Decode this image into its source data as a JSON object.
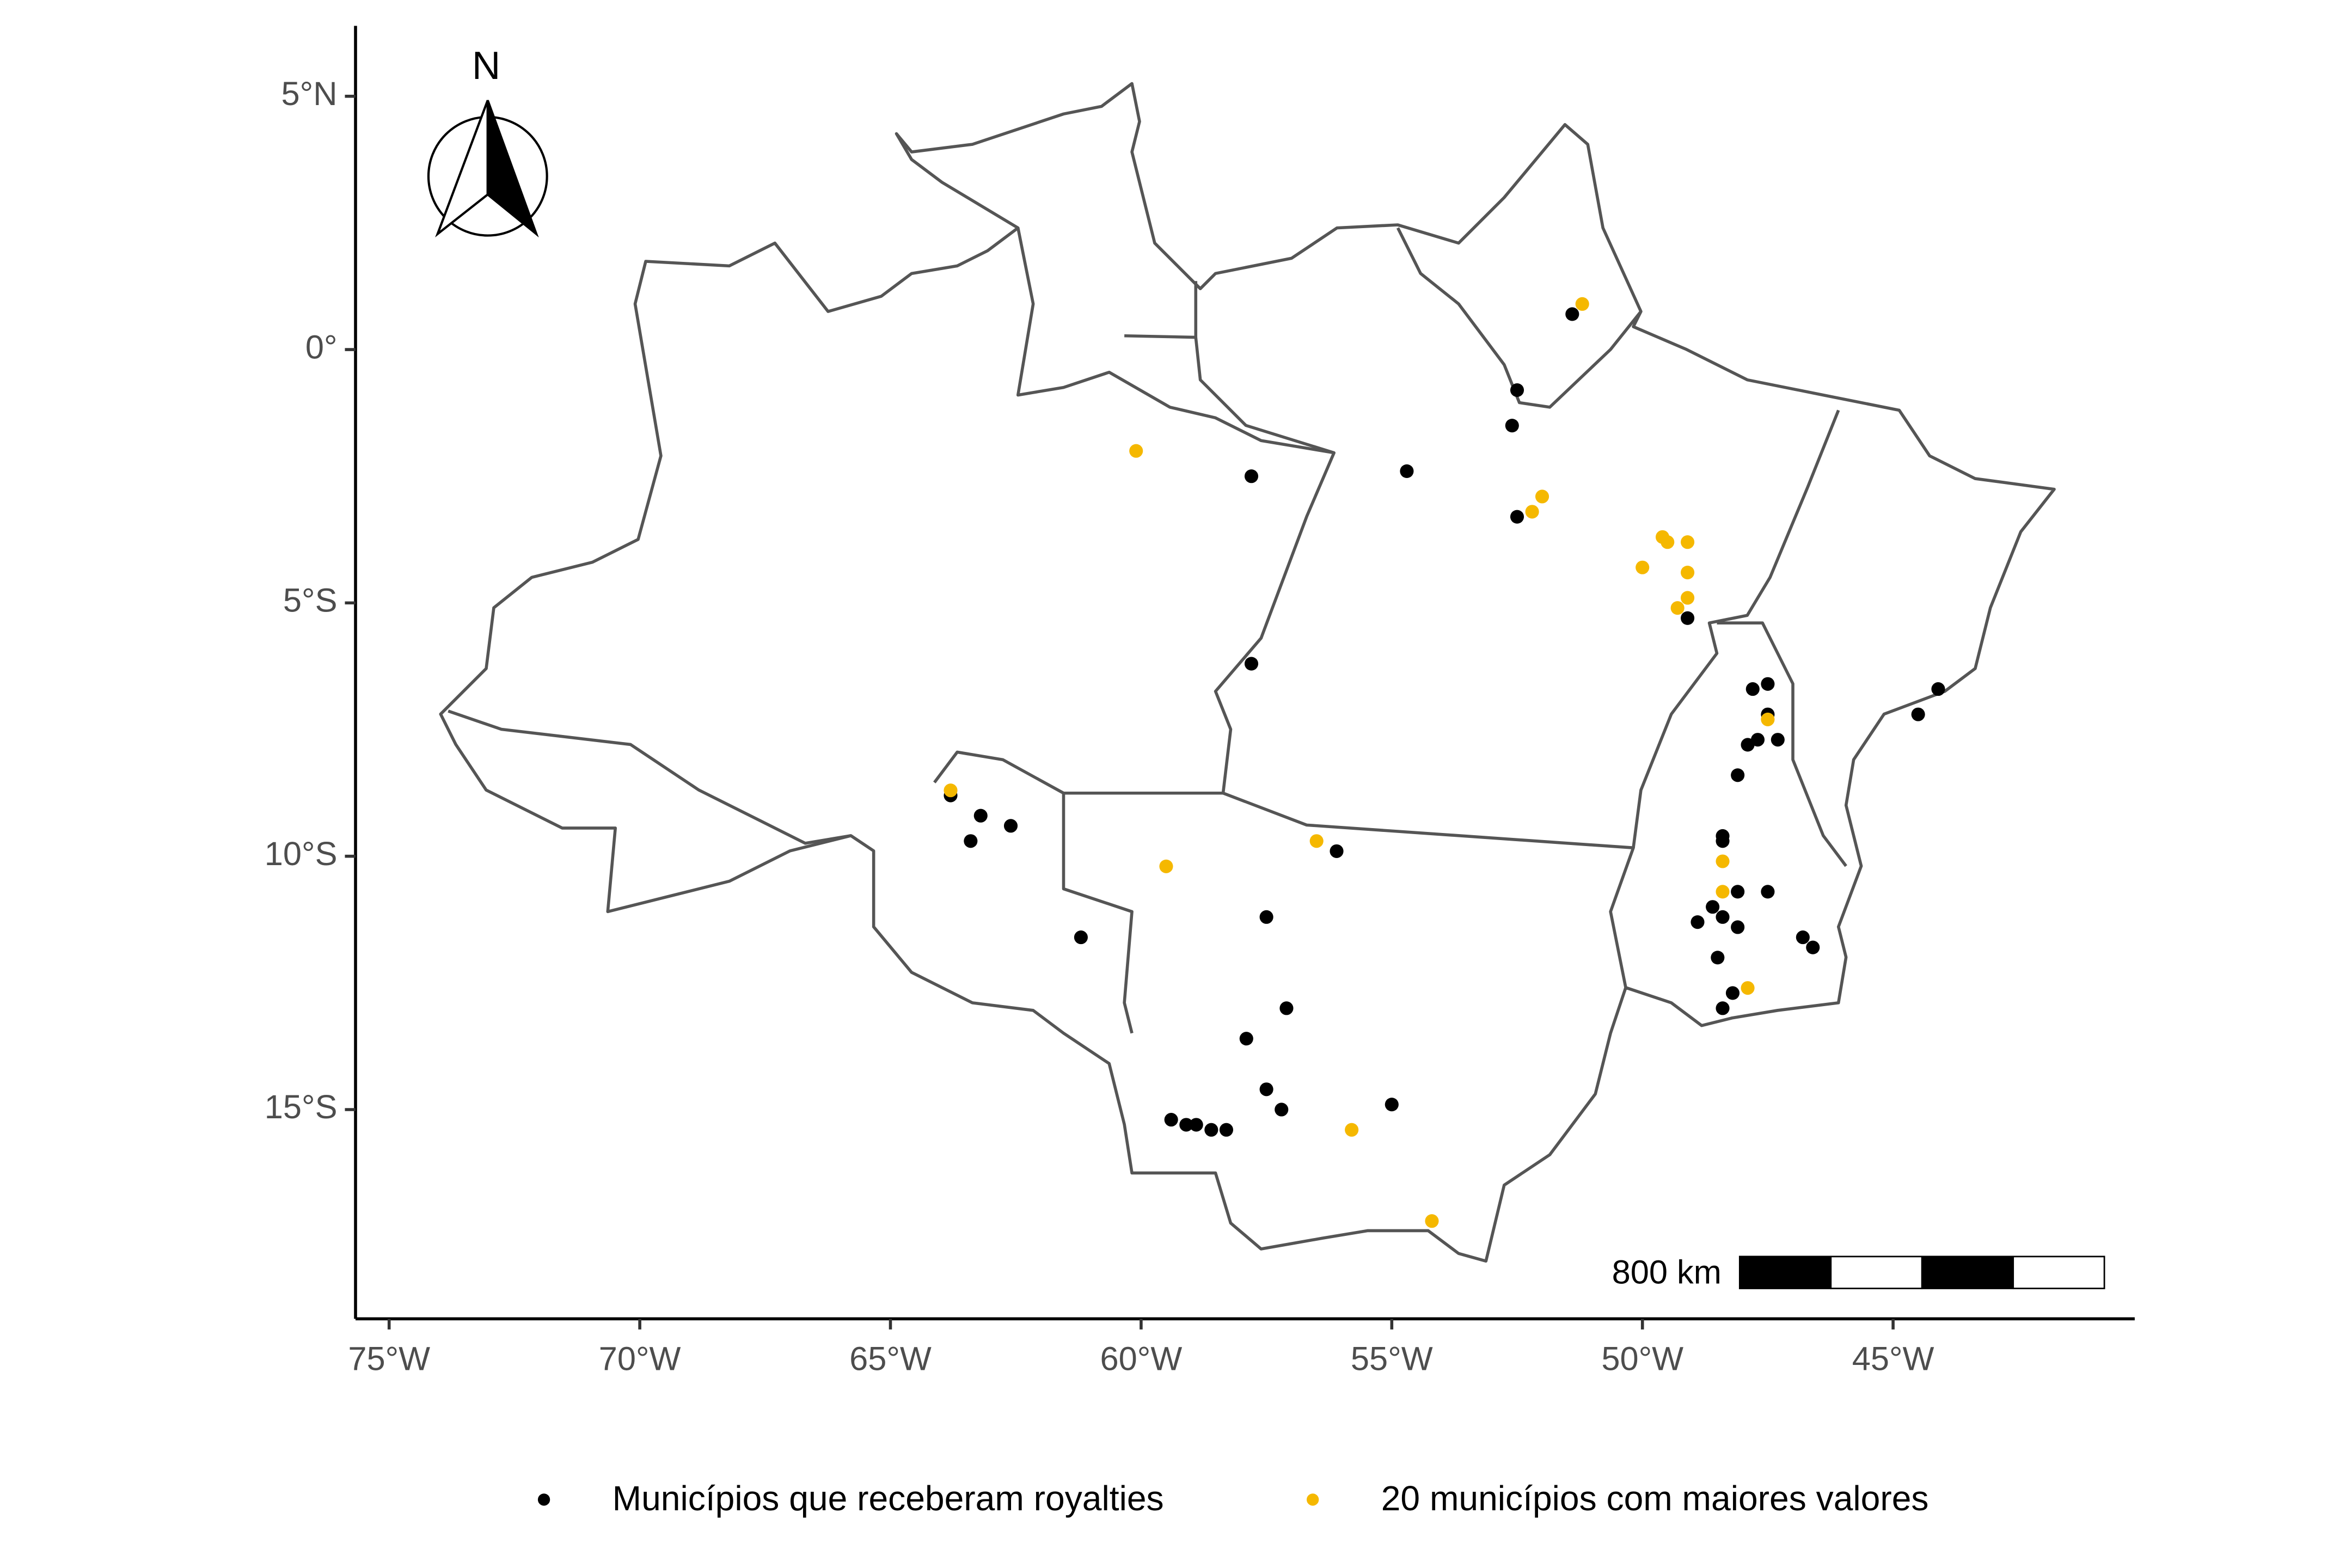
{
  "chart_data": {
    "type": "scatter",
    "xlim": [
      -75.67,
      -40.18
    ],
    "ylim": [
      -19.13,
      6.39
    ],
    "xticks": [
      {
        "value": -75,
        "label": "75°W"
      },
      {
        "value": -70,
        "label": "70°W"
      },
      {
        "value": -65,
        "label": "65°W"
      },
      {
        "value": -60,
        "label": "60°W"
      },
      {
        "value": -55,
        "label": "55°W"
      },
      {
        "value": -50,
        "label": "50°W"
      },
      {
        "value": -45,
        "label": "45°W"
      }
    ],
    "yticks": [
      {
        "value": 5,
        "label": "5°N"
      },
      {
        "value": 0,
        "label": "0°"
      },
      {
        "value": -5,
        "label": "5°S"
      },
      {
        "value": -10,
        "label": "10°S"
      },
      {
        "value": -15,
        "label": "15°S"
      }
    ],
    "annotations": {
      "north": "N",
      "scale": "800 km"
    },
    "series": [
      {
        "name": "Municípios que receberam royalties",
        "color": "#000000",
        "x": [
          -51.4,
          -52.5,
          -52.6,
          -57.8,
          -54.7,
          -52.5,
          -57.8,
          -49.1,
          -44.1,
          -44.5,
          -47.5,
          -47.8,
          -47.5,
          -47.7,
          -47.3,
          -47.9,
          -48.1,
          -48.4,
          -48.4,
          -47.5,
          -48.1,
          -48.6,
          -48.4,
          -48.9,
          -48.1,
          -48.5,
          -48.2,
          -48.4,
          -46.8,
          -46.6,
          -63.8,
          -63.2,
          -63.4,
          -62.6,
          -61.2,
          -56.1,
          -57.5,
          -57.1,
          -57.9,
          -57.5,
          -57.2,
          -55.0,
          -59.4,
          -59.1,
          -58.9,
          -58.6,
          -58.3
        ],
        "y": [
          0.7,
          -0.8,
          -1.5,
          -2.5,
          -2.4,
          -3.3,
          -6.2,
          -5.3,
          -6.7,
          -7.2,
          -6.6,
          -6.7,
          -7.2,
          -7.7,
          -7.7,
          -7.8,
          -8.4,
          -9.6,
          -9.7,
          -10.7,
          -10.7,
          -11.0,
          -11.2,
          -11.3,
          -11.4,
          -12.0,
          -12.7,
          -13.0,
          -11.6,
          -11.8,
          -8.8,
          -9.2,
          -9.7,
          -9.4,
          -11.6,
          -9.9,
          -11.2,
          -13.0,
          -13.6,
          -14.6,
          -15.0,
          -14.9,
          -15.2,
          -15.3,
          -15.3,
          -15.4,
          -15.4
        ]
      },
      {
        "name": "20 municípios com maiores valores",
        "color": "#f5b800",
        "x": [
          -60.1,
          -51.2,
          -52.0,
          -52.2,
          -49.6,
          -49.5,
          -49.1,
          -50.0,
          -49.1,
          -49.1,
          -49.3,
          -47.5,
          -48.4,
          -48.4,
          -47.9,
          -63.8,
          -59.5,
          -56.5,
          -55.8,
          -54.2
        ],
        "y": [
          -2.0,
          0.9,
          -2.9,
          -3.2,
          -3.7,
          -3.8,
          -3.8,
          -4.3,
          -4.4,
          -4.9,
          -5.1,
          -7.3,
          -10.1,
          -10.7,
          -12.6,
          -8.7,
          -10.2,
          -9.7,
          -15.4,
          -17.2
        ]
      }
    ]
  }
}
